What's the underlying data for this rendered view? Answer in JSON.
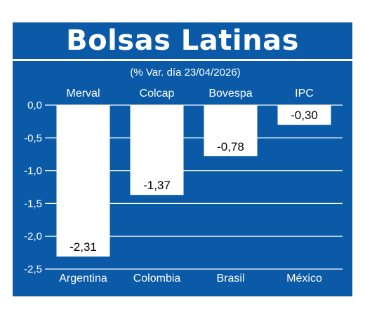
{
  "title": "Bolsas Latinas",
  "chart_data": {
    "type": "bar",
    "title": "Bolsas Latinas",
    "subtitle": "(% Var. día 23/04/2026)",
    "categories": [
      "Argentina",
      "Colombia",
      "Brasil",
      "México"
    ],
    "index_names": [
      "Merval",
      "Colcap",
      "Bovespa",
      "IPC"
    ],
    "values": [
      -2.31,
      -1.37,
      -0.78,
      -0.3
    ],
    "value_labels": [
      "-2,31",
      "-1,37",
      "-0,78",
      "-0,30"
    ],
    "y_ticks": [
      0.0,
      -0.5,
      -1.0,
      -1.5,
      -2.0,
      -2.5
    ],
    "y_tick_labels": [
      "0,0",
      "-0,5",
      "-1,0",
      "-1,5",
      "-2,0",
      "-2,5"
    ],
    "ylim": [
      -2.5,
      0
    ],
    "xlabel": "",
    "ylabel": "",
    "grid": true,
    "colors": {
      "background": "#0a5aa8",
      "bar": "#ffffff",
      "text": "#ffffff",
      "bar_label": "#000000",
      "grid": "#ffffff"
    }
  }
}
